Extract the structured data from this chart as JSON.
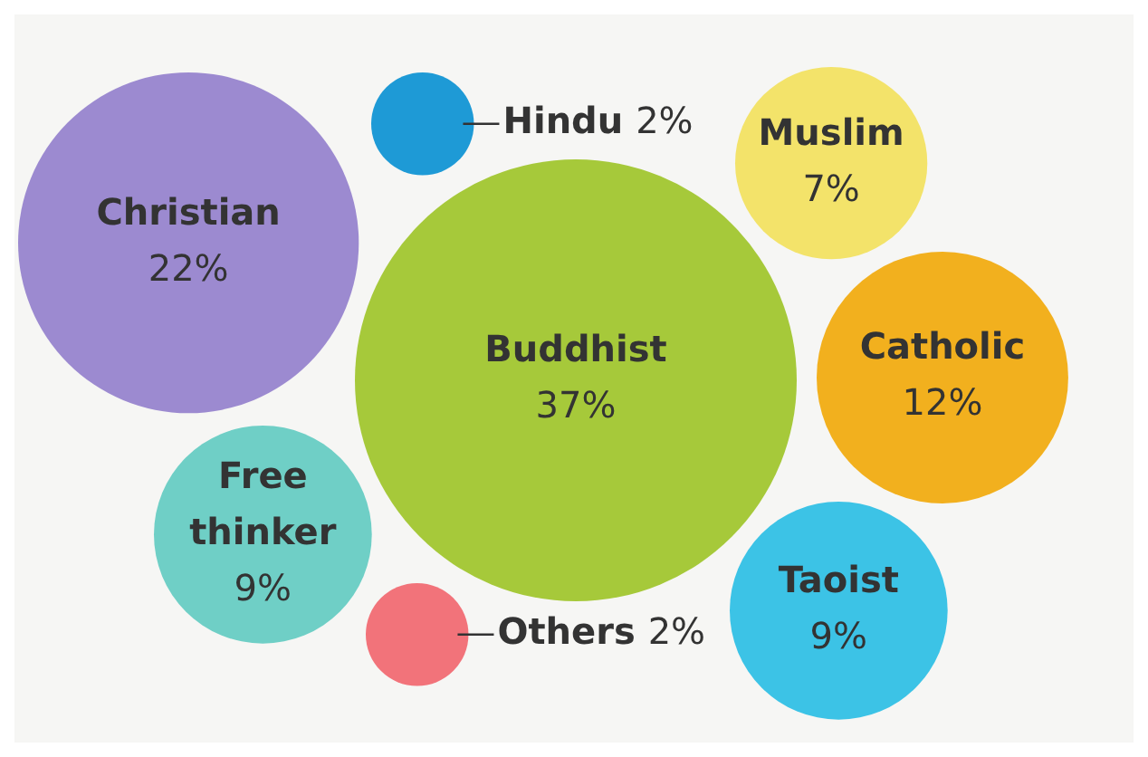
{
  "chart_data": {
    "type": "other",
    "categories": [
      "Buddhist",
      "Catholic",
      "Hindu",
      "Free thinker",
      "Christian",
      "Muslim",
      "Taoist",
      "Others"
    ],
    "values": [
      37,
      12,
      2,
      9,
      22,
      7,
      9,
      2
    ],
    "value_labels": [
      "37%",
      "12%",
      "2%",
      "9%",
      "22%",
      "7%",
      "9%",
      "2%"
    ],
    "colors": [
      "#a6c93a",
      "#f2b01e",
      "#1e9ad6",
      "#6fcfc6",
      "#9c8ad0",
      "#f3e36a",
      "#3cc3e6",
      "#f2737a"
    ]
  }
}
